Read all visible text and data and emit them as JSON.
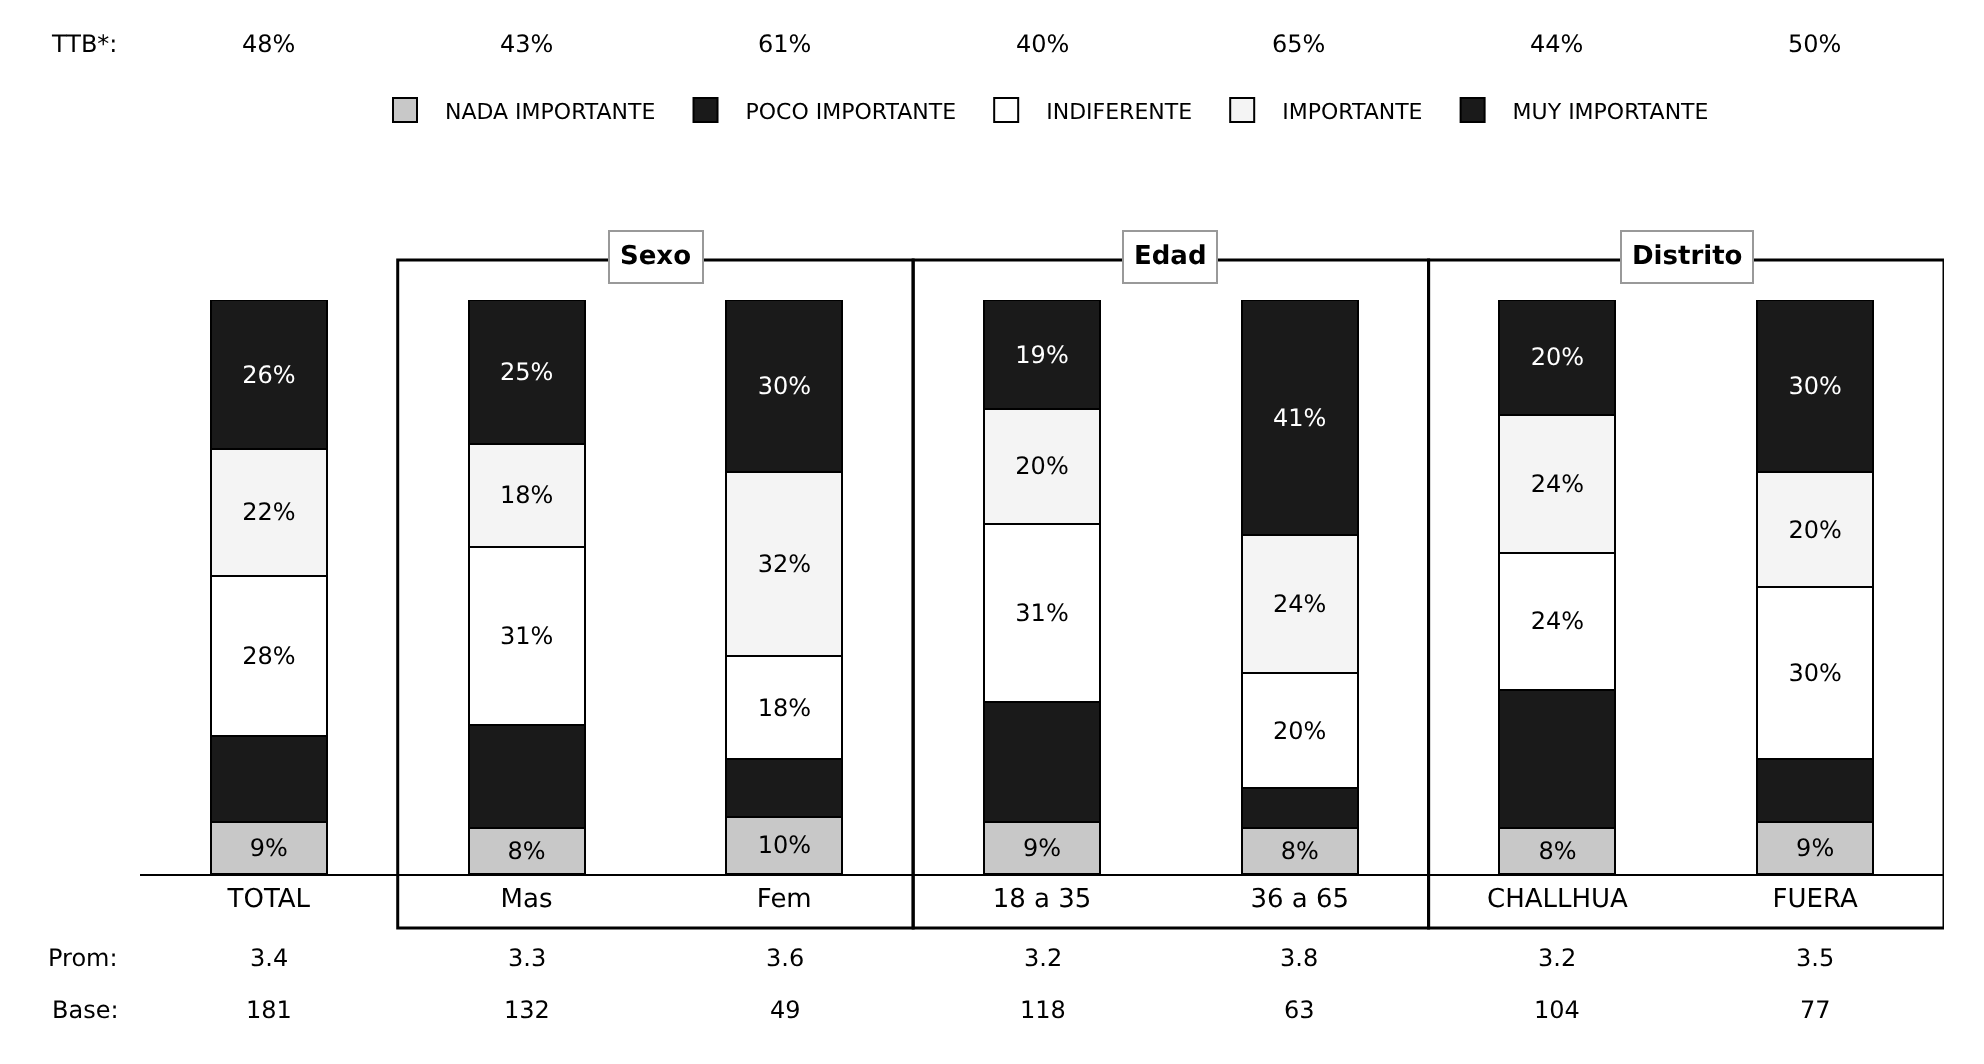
{
  "chart_data": {
    "type": "bar",
    "stacked": true,
    "categories": [
      "TOTAL",
      "Mas",
      "Fem",
      "18 a 35",
      "36 a 65",
      "CHALLHUA",
      "FUERA"
    ],
    "ylim": [
      0,
      100
    ],
    "tick_labels": "x",
    "grid": false,
    "legend": "top",
    "series": [
      {
        "name": "NADA IMPORTANTE",
        "color": "#c8c8c8",
        "values": [
          9,
          8,
          10,
          9,
          8,
          8,
          9
        ],
        "value_labels": [
          "9%",
          "8%",
          "10%",
          "9%",
          "8%",
          "8%",
          "9%"
        ]
      },
      {
        "name": "POCO IMPORTANTE",
        "color": "#1a1a1a",
        "values": [
          15,
          18,
          10,
          21,
          7,
          24,
          11
        ],
        "value_labels": [
          null,
          null,
          null,
          null,
          null,
          null,
          null
        ]
      },
      {
        "name": "INDIFERENTE",
        "color": "#ffffff",
        "values": [
          28,
          31,
          18,
          31,
          20,
          24,
          30
        ],
        "value_labels": [
          "28%",
          "31%",
          "18%",
          "31%",
          "20%",
          "24%",
          "30%"
        ]
      },
      {
        "name": "IMPORTANTE",
        "color": "#f4f4f4",
        "values": [
          22,
          18,
          32,
          20,
          24,
          24,
          20
        ],
        "value_labels": [
          "22%",
          "18%",
          "32%",
          "20%",
          "24%",
          "24%",
          "20%"
        ]
      },
      {
        "name": "MUY IMPORTANTE",
        "color": "#1a1a1a",
        "values": [
          26,
          25,
          30,
          19,
          41,
          20,
          30
        ],
        "value_labels": [
          "26%",
          "25%",
          "30%",
          "19%",
          "41%",
          "20%",
          "30%"
        ]
      }
    ],
    "annotations": [
      "Sexo",
      "Edad",
      "Distrito",
      "TTB*:",
      "48%",
      "43%",
      "61%",
      "40%",
      "65%",
      "44%",
      "50%",
      "Prom:",
      "3.4",
      "3.3",
      "3.6",
      "3.2",
      "3.8",
      "3.2",
      "3.5",
      "Base:",
      "181",
      "132",
      "49",
      "118",
      "63",
      "104",
      "77"
    ]
  }
}
